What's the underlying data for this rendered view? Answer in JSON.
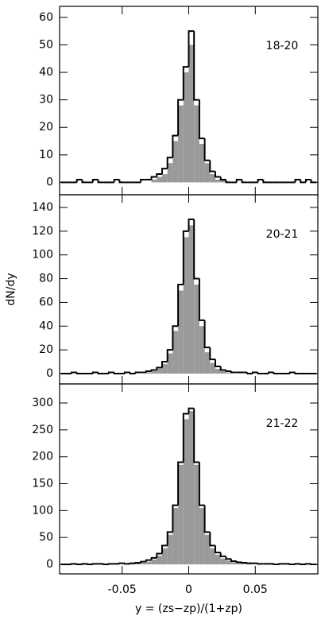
{
  "chart_data": [
    {
      "type": "histogram",
      "panel_label": "18-20",
      "bins": [
        -0.096,
        -0.092,
        -0.088,
        -0.084,
        -0.08,
        -0.076,
        -0.072,
        -0.068,
        -0.064,
        -0.06,
        -0.056,
        -0.052,
        -0.048,
        -0.044,
        -0.04,
        -0.036,
        -0.032,
        -0.028,
        -0.024,
        -0.02,
        -0.016,
        -0.012,
        -0.008,
        -0.004,
        0,
        0.004,
        0.008,
        0.012,
        0.016,
        0.02,
        0.024,
        0.028,
        0.032,
        0.036,
        0.04,
        0.044,
        0.048,
        0.052,
        0.056,
        0.06,
        0.064,
        0.068,
        0.072,
        0.076,
        0.08,
        0.084,
        0.088,
        0.092,
        0.096
      ],
      "series": [
        {
          "style": "filled",
          "color": "#9a9a9a",
          "values": [
            0,
            0,
            0,
            0,
            0,
            0,
            0,
            0,
            0,
            0,
            0,
            0,
            0,
            0,
            0,
            0,
            0,
            1,
            2,
            3,
            7,
            15,
            28,
            40,
            50,
            28,
            14,
            7,
            3,
            1,
            1,
            0,
            0,
            0,
            0,
            0,
            0,
            0,
            0,
            0,
            0,
            0,
            0,
            0,
            0,
            0,
            0,
            0
          ]
        },
        {
          "style": "step",
          "color": "#000000",
          "values": [
            0,
            0,
            0,
            1,
            0,
            0,
            1,
            0,
            0,
            0,
            1,
            0,
            0,
            0,
            0,
            1,
            1,
            2,
            3,
            5,
            9,
            17,
            30,
            42,
            55,
            30,
            16,
            8,
            4,
            2,
            1,
            0,
            0,
            1,
            0,
            0,
            0,
            1,
            0,
            0,
            0,
            0,
            0,
            0,
            1,
            0,
            1,
            0
          ]
        }
      ],
      "xlim": [
        -0.097,
        0.097
      ],
      "xticks": [
        -0.05,
        0,
        0.05
      ],
      "ylim": [
        -4.5,
        64
      ],
      "yticks": [
        0,
        10,
        20,
        30,
        40,
        50,
        60
      ]
    },
    {
      "type": "histogram",
      "panel_label": "20-21",
      "ylabel": "dN/dy",
      "bins": [
        -0.096,
        -0.092,
        -0.088,
        -0.084,
        -0.08,
        -0.076,
        -0.072,
        -0.068,
        -0.064,
        -0.06,
        -0.056,
        -0.052,
        -0.048,
        -0.044,
        -0.04,
        -0.036,
        -0.032,
        -0.028,
        -0.024,
        -0.02,
        -0.016,
        -0.012,
        -0.008,
        -0.004,
        0,
        0.004,
        0.008,
        0.012,
        0.016,
        0.02,
        0.024,
        0.028,
        0.032,
        0.036,
        0.04,
        0.044,
        0.048,
        0.052,
        0.056,
        0.06,
        0.064,
        0.068,
        0.072,
        0.076,
        0.08,
        0.084,
        0.088,
        0.092,
        0.096
      ],
      "series": [
        {
          "style": "filled",
          "color": "#9a9a9a",
          "values": [
            0,
            0,
            0,
            0,
            0,
            0,
            0,
            0,
            0,
            0,
            0,
            0,
            0,
            0,
            0,
            0,
            1,
            2,
            4,
            8,
            17,
            36,
            70,
            115,
            125,
            75,
            40,
            18,
            9,
            4,
            2,
            1,
            0,
            0,
            0,
            0,
            0,
            0,
            0,
            0,
            0,
            0,
            0,
            0,
            0,
            0,
            0,
            0
          ]
        },
        {
          "style": "step",
          "color": "#000000",
          "values": [
            0,
            0,
            1,
            0,
            0,
            0,
            1,
            0,
            0,
            1,
            0,
            0,
            1,
            0,
            1,
            1,
            2,
            3,
            5,
            10,
            20,
            40,
            75,
            120,
            130,
            80,
            45,
            22,
            12,
            6,
            3,
            2,
            1,
            1,
            1,
            0,
            1,
            0,
            0,
            1,
            0,
            0,
            0,
            1,
            0,
            0,
            0,
            0
          ]
        }
      ],
      "xlim": [
        -0.097,
        0.097
      ],
      "xticks": [
        -0.05,
        0,
        0.05
      ],
      "ylim": [
        -8.7,
        150.7
      ],
      "yticks": [
        0,
        20,
        40,
        60,
        80,
        100,
        120,
        140
      ]
    },
    {
      "type": "histogram",
      "panel_label": "21-22",
      "xlabel": "y = (zs−zp)/(1+zp)",
      "bins": [
        -0.096,
        -0.092,
        -0.088,
        -0.084,
        -0.08,
        -0.076,
        -0.072,
        -0.068,
        -0.064,
        -0.06,
        -0.056,
        -0.052,
        -0.048,
        -0.044,
        -0.04,
        -0.036,
        -0.032,
        -0.028,
        -0.024,
        -0.02,
        -0.016,
        -0.012,
        -0.008,
        -0.004,
        0,
        0.004,
        0.008,
        0.012,
        0.016,
        0.02,
        0.024,
        0.028,
        0.032,
        0.036,
        0.04,
        0.044,
        0.048,
        0.052,
        0.056,
        0.06,
        0.064,
        0.068,
        0.072,
        0.076,
        0.08,
        0.084,
        0.088,
        0.092,
        0.096
      ],
      "series": [
        {
          "style": "filled",
          "color": "#9a9a9a",
          "values": [
            0,
            0,
            0,
            0,
            0,
            0,
            0,
            0,
            0,
            0,
            0,
            0,
            0,
            1,
            2,
            3,
            5,
            9,
            16,
            30,
            55,
            105,
            185,
            270,
            285,
            185,
            105,
            55,
            30,
            18,
            11,
            7,
            4,
            2,
            1,
            1,
            0,
            0,
            0,
            0,
            0,
            0,
            0,
            0,
            0,
            0,
            0,
            0
          ]
        },
        {
          "style": "step",
          "color": "#000000",
          "values": [
            0,
            0,
            1,
            0,
            1,
            0,
            1,
            1,
            0,
            1,
            1,
            2,
            1,
            2,
            3,
            5,
            8,
            12,
            20,
            35,
            60,
            110,
            190,
            280,
            290,
            190,
            110,
            60,
            35,
            22,
            15,
            10,
            6,
            4,
            3,
            2,
            2,
            1,
            1,
            1,
            0,
            1,
            1,
            0,
            1,
            0,
            1,
            0
          ]
        }
      ],
      "xlim": [
        -0.097,
        0.097
      ],
      "xticks": [
        -0.05,
        0,
        0.05
      ],
      "ylim": [
        -17.7,
        335.5
      ],
      "yticks": [
        0,
        50,
        100,
        150,
        200,
        250,
        300
      ]
    }
  ]
}
